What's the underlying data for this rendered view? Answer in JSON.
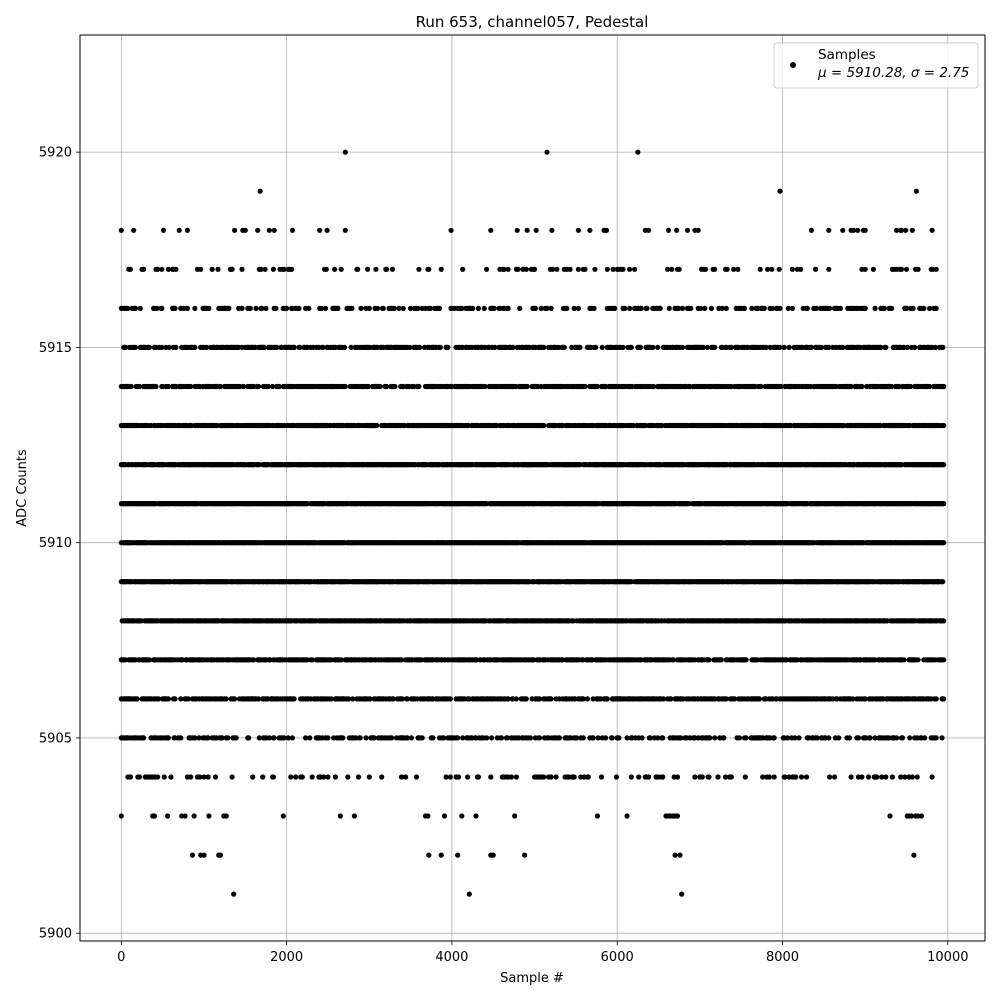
{
  "chart_data": {
    "type": "scatter",
    "title": "Run 653, channel057, Pedestal",
    "xlabel": "Sample #",
    "ylabel": "ADC Counts",
    "xlim": [
      -500,
      10450
    ],
    "ylim": [
      5899.8,
      5923
    ],
    "xticks": [
      0,
      2000,
      4000,
      6000,
      8000,
      10000
    ],
    "xtick_labels": [
      "0",
      "2000",
      "4000",
      "6000",
      "8000",
      "10000"
    ],
    "yticks": [
      5900,
      5905,
      5910,
      5915,
      5920
    ],
    "ytick_labels": [
      "5900",
      "5905",
      "5910",
      "5915",
      "5920"
    ],
    "grid": true,
    "legend_position": "top-right",
    "series": [
      {
        "name": "Samples",
        "stats_label": "μ = 5910.28, σ = 2.75",
        "marker": "dot",
        "color": "#000000",
        "n_samples": 10000,
        "x_range": [
          0,
          9950
        ],
        "sample_step": 10,
        "levels": [
          {
            "value": 5901,
            "x": [
              1360,
              4210,
              6780
            ]
          },
          {
            "value": 5902,
            "x": [
              860,
              960,
              1000,
              1180,
              1200,
              3720,
              3870,
              4070,
              4470,
              4500,
              4880,
              6700,
              6760,
              9590
            ]
          },
          {
            "value": 5903,
            "x": [
              0,
              380,
              400,
              560,
              730,
              770,
              880,
              1060,
              1240,
              1270,
              1960,
              2650,
              2820,
              3680,
              3710,
              3910,
              4120,
              4290,
              4760,
              5760,
              6120,
              6590,
              6620,
              6640,
              6670,
              6690,
              6710,
              6730,
              9300,
              9510,
              9530,
              9560,
              9610,
              9640,
              9680
            ]
          },
          {
            "value": 5919,
            "x": [
              1680,
              7970,
              9620
            ]
          },
          {
            "value": 5920,
            "x": [
              2710,
              5150,
              6250
            ]
          }
        ],
        "dense_levels": [
          {
            "value": 5904,
            "density": 0.12
          },
          {
            "value": 5905,
            "density": 0.3
          },
          {
            "value": 5906,
            "density": 0.52
          },
          {
            "value": 5907,
            "density": 0.66
          },
          {
            "value": 5908,
            "density": 0.8
          },
          {
            "value": 5909,
            "density": 0.9
          },
          {
            "value": 5910,
            "density": 0.93
          },
          {
            "value": 5911,
            "density": 0.88
          },
          {
            "value": 5912,
            "density": 0.8
          },
          {
            "value": 5913,
            "density": 0.68
          },
          {
            "value": 5914,
            "density": 0.55
          },
          {
            "value": 5915,
            "density": 0.42
          },
          {
            "value": 5916,
            "density": 0.24
          },
          {
            "value": 5917,
            "density": 0.1
          },
          {
            "value": 5918,
            "density": 0.05
          }
        ]
      }
    ]
  }
}
